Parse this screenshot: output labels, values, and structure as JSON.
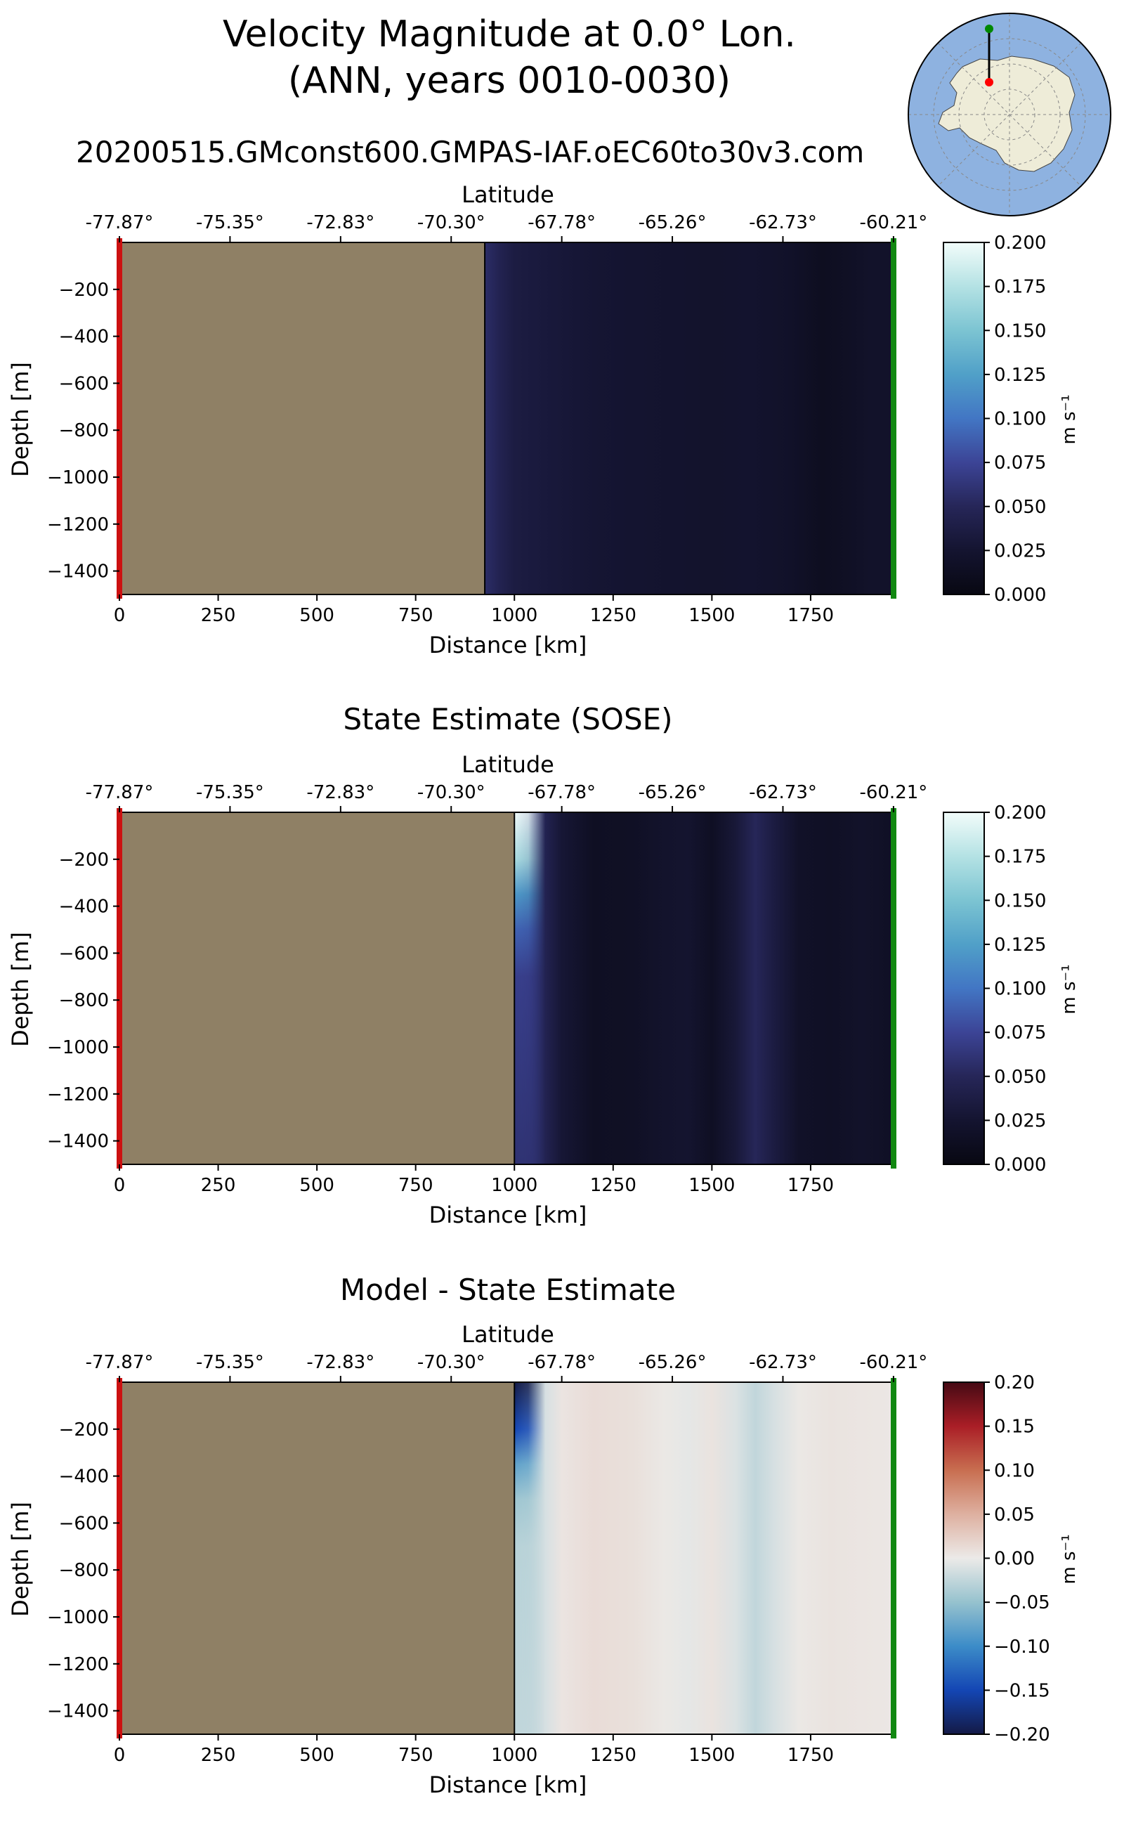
{
  "figure": {
    "title_line1": "Velocity Magnitude at 0.0° Lon.",
    "title_line2": "(ANN, years 0010-0030)",
    "subtitle": "20200515.GMconst600.GMPAS-IAF.oEC60to30v3.com",
    "land_color": "#8f8065",
    "start_marker_color": "#cc1111",
    "end_marker_color": "#118811"
  },
  "inset_map": {
    "ocean_color": "#8eb2e0",
    "land_color": "#eeecd8",
    "transect_color": "#000000",
    "start_point_color": "#ff0000",
    "end_point_color": "#008800"
  },
  "chart_data": [
    {
      "type": "heatmap",
      "panel_title": "",
      "xlabel": "Distance [km]",
      "ylabel": "Depth [m]",
      "top_axis_label": "Latitude",
      "xlim": [
        0,
        1960
      ],
      "ylim": [
        -1500,
        0
      ],
      "x_ticks": [
        0,
        250,
        500,
        750,
        1000,
        1250,
        1500,
        1750
      ],
      "y_ticks": [
        -200,
        -400,
        -600,
        -800,
        -1000,
        -1200,
        -1400
      ],
      "lat_ticks": [
        "-77.87°",
        "-75.35°",
        "-72.83°",
        "-70.30°",
        "-67.78°",
        "-65.26°",
        "-62.73°",
        "-60.21°"
      ],
      "land_until_km": 925,
      "colormap": "sequential",
      "colorbar_label": "m s⁻¹",
      "colorbar_range": [
        0.0,
        0.2
      ],
      "colorbar_ticks": [
        "0.000",
        "0.025",
        "0.050",
        "0.075",
        "0.100",
        "0.125",
        "0.150",
        "0.175",
        "0.200"
      ],
      "columns": [
        {
          "x": 925,
          "v": 0.056
        },
        {
          "x": 960,
          "v": 0.046
        },
        {
          "x": 1000,
          "v": 0.036
        },
        {
          "x": 1100,
          "v": 0.031
        },
        {
          "x": 1200,
          "v": 0.027
        },
        {
          "x": 1300,
          "v": 0.025
        },
        {
          "x": 1400,
          "v": 0.023
        },
        {
          "x": 1500,
          "v": 0.022
        },
        {
          "x": 1600,
          "v": 0.023
        },
        {
          "x": 1700,
          "v": 0.019
        },
        {
          "x": 1780,
          "v": 0.012
        },
        {
          "x": 1850,
          "v": 0.016
        },
        {
          "x": 1900,
          "v": 0.02
        },
        {
          "x": 1960,
          "v": 0.02
        }
      ]
    },
    {
      "type": "heatmap",
      "panel_title": "State Estimate (SOSE)",
      "xlabel": "Distance [km]",
      "ylabel": "Depth [m]",
      "top_axis_label": "Latitude",
      "xlim": [
        0,
        1960
      ],
      "ylim": [
        -1500,
        0
      ],
      "x_ticks": [
        0,
        250,
        500,
        750,
        1000,
        1250,
        1500,
        1750
      ],
      "y_ticks": [
        -200,
        -400,
        -600,
        -800,
        -1000,
        -1200,
        -1400
      ],
      "lat_ticks": [
        "-77.87°",
        "-75.35°",
        "-72.83°",
        "-70.30°",
        "-67.78°",
        "-65.26°",
        "-62.73°",
        "-60.21°"
      ],
      "land_until_km": 1000,
      "colormap": "sequential",
      "colorbar_label": "m s⁻¹",
      "colorbar_range": [
        0.0,
        0.2
      ],
      "colorbar_ticks": [
        "0.000",
        "0.025",
        "0.050",
        "0.075",
        "0.100",
        "0.125",
        "0.150",
        "0.175",
        "0.200"
      ],
      "columns": [
        {
          "x": 1000,
          "v": 0.08
        },
        {
          "x": 1030,
          "v": 0.065
        },
        {
          "x": 1080,
          "v": 0.045
        },
        {
          "x": 1120,
          "v": 0.028
        },
        {
          "x": 1200,
          "v": 0.014
        },
        {
          "x": 1300,
          "v": 0.016
        },
        {
          "x": 1380,
          "v": 0.022
        },
        {
          "x": 1440,
          "v": 0.024
        },
        {
          "x": 1500,
          "v": 0.014
        },
        {
          "x": 1560,
          "v": 0.03
        },
        {
          "x": 1610,
          "v": 0.05
        },
        {
          "x": 1660,
          "v": 0.035
        },
        {
          "x": 1720,
          "v": 0.018
        },
        {
          "x": 1800,
          "v": 0.016
        },
        {
          "x": 1880,
          "v": 0.02
        },
        {
          "x": 1960,
          "v": 0.016
        }
      ],
      "surface_jet": [
        {
          "depth": 0,
          "v": 0.2
        },
        {
          "depth": -200,
          "v": 0.17
        },
        {
          "depth": -350,
          "v": 0.12
        },
        {
          "depth": -500,
          "v": 0.09
        },
        {
          "depth": -700,
          "v": 0.07
        },
        {
          "depth": -1500,
          "v": 0.06
        }
      ]
    },
    {
      "type": "heatmap",
      "panel_title": "Model - State Estimate",
      "xlabel": "Distance [km]",
      "ylabel": "Depth [m]",
      "top_axis_label": "Latitude",
      "xlim": [
        0,
        1960
      ],
      "ylim": [
        -1500,
        0
      ],
      "x_ticks": [
        0,
        250,
        500,
        750,
        1000,
        1250,
        1500,
        1750
      ],
      "y_ticks": [
        -200,
        -400,
        -600,
        -800,
        -1000,
        -1200,
        -1400
      ],
      "lat_ticks": [
        "-77.87°",
        "-75.35°",
        "-72.83°",
        "-70.30°",
        "-67.78°",
        "-65.26°",
        "-62.73°",
        "-60.21°"
      ],
      "land_until_km": 1000,
      "colormap": "diverging",
      "colorbar_label": "m s⁻¹",
      "colorbar_range": [
        -0.2,
        0.2
      ],
      "colorbar_ticks": [
        "−0.20",
        "−0.15",
        "−0.10",
        "−0.05",
        "0.00",
        "0.05",
        "0.10",
        "0.15",
        "0.20"
      ],
      "columns": [
        {
          "x": 1000,
          "v": -0.03
        },
        {
          "x": 1030,
          "v": -0.025
        },
        {
          "x": 1080,
          "v": -0.012
        },
        {
          "x": 1120,
          "v": 0.005
        },
        {
          "x": 1200,
          "v": 0.012
        },
        {
          "x": 1300,
          "v": 0.009
        },
        {
          "x": 1380,
          "v": 0.002
        },
        {
          "x": 1440,
          "v": -0.004
        },
        {
          "x": 1500,
          "v": 0.006
        },
        {
          "x": 1560,
          "v": -0.01
        },
        {
          "x": 1610,
          "v": -0.025
        },
        {
          "x": 1660,
          "v": -0.012
        },
        {
          "x": 1720,
          "v": 0.002
        },
        {
          "x": 1800,
          "v": 0.006
        },
        {
          "x": 1880,
          "v": 0.004
        },
        {
          "x": 1960,
          "v": 0.003
        }
      ],
      "surface_jet": [
        {
          "depth": 0,
          "v": -0.2
        },
        {
          "depth": -200,
          "v": -0.15
        },
        {
          "depth": -350,
          "v": -0.08
        },
        {
          "depth": -500,
          "v": -0.045
        },
        {
          "depth": -700,
          "v": -0.03
        },
        {
          "depth": -1500,
          "v": -0.025
        }
      ]
    }
  ]
}
